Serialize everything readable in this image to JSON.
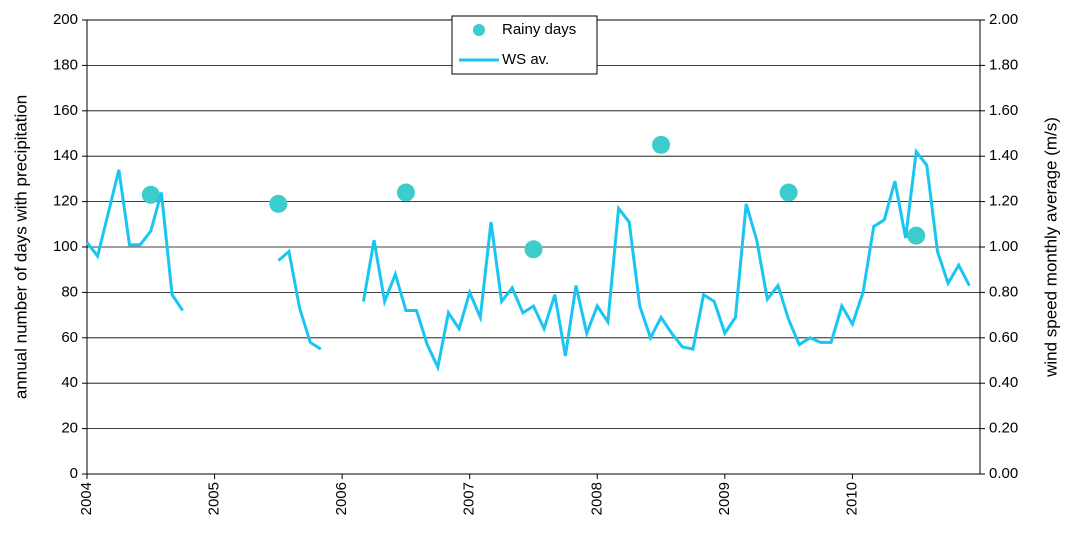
{
  "chart_data": {
    "type": "line-scatter",
    "y_label": "annual number of  days with precipitation",
    "y2_label": "wind speed monthly average (m/s)",
    "xlim": [
      2004,
      2011
    ],
    "xticks": [
      2004,
      2005,
      2006,
      2007,
      2008,
      2009,
      2010
    ],
    "ylim": [
      0,
      200
    ],
    "yticks": [
      0,
      20,
      40,
      60,
      80,
      100,
      120,
      140,
      160,
      180,
      200
    ],
    "y2lim": [
      0,
      2
    ],
    "y2ticks": [
      {
        "value": 0,
        "label": "0.00"
      },
      {
        "value": 0.2,
        "label": "0.20"
      },
      {
        "value": 0.4,
        "label": "0.40"
      },
      {
        "value": 0.6,
        "label": "0.60"
      },
      {
        "value": 0.8,
        "label": "0.80"
      },
      {
        "value": 1,
        "label": "1.00"
      },
      {
        "value": 1.2,
        "label": "1.20"
      },
      {
        "value": 1.4,
        "label": "1.40"
      },
      {
        "value": 1.6,
        "label": "1.60"
      },
      {
        "value": 1.8,
        "label": "1.80"
      },
      {
        "value": 2,
        "label": "2.00"
      }
    ],
    "grid": true,
    "legend": "top",
    "series": [
      {
        "name": "Rainy days",
        "kind": "scatter",
        "color": "#3ccccc",
        "axis": "y",
        "x": [
          2004.5,
          2005.5,
          2006.5,
          2007.5,
          2008.5,
          2009.5,
          2010.5
        ],
        "values": [
          123,
          119,
          124,
          99,
          145,
          124,
          105
        ]
      },
      {
        "name": "WS av.",
        "kind": "line",
        "color": "#19c6f2",
        "axis": "y2",
        "x": [
          2004,
          2004.083,
          2004.167,
          2004.25,
          2004.333,
          2004.417,
          2004.5,
          2004.583,
          2004.667,
          2004.75,
          2004.833,
          2004.917,
          2005,
          2005.083,
          2005.167,
          2005.25,
          2005.333,
          2005.417,
          2005.5,
          2005.583,
          2005.667,
          2005.75,
          2005.833,
          2005.917,
          2006,
          2006.083,
          2006.167,
          2006.25,
          2006.333,
          2006.417,
          2006.5,
          2006.583,
          2006.667,
          2006.75,
          2006.833,
          2006.917,
          2007,
          2007.083,
          2007.167,
          2007.25,
          2007.333,
          2007.417,
          2007.5,
          2007.583,
          2007.667,
          2007.75,
          2007.833,
          2007.917,
          2008,
          2008.083,
          2008.167,
          2008.25,
          2008.333,
          2008.417,
          2008.5,
          2008.583,
          2008.667,
          2008.75,
          2008.833,
          2008.917,
          2009,
          2009.083,
          2009.167,
          2009.25,
          2009.333,
          2009.417,
          2009.5,
          2009.583,
          2009.667,
          2009.75,
          2009.833,
          2009.917,
          2010,
          2010.083,
          2010.167,
          2010.25,
          2010.333,
          2010.417,
          2010.5,
          2010.583,
          2010.667,
          2010.75,
          2010.833,
          2010.917
        ],
        "values": [
          1.02,
          0.96,
          1.15,
          1.34,
          1.01,
          1.01,
          1.07,
          1.24,
          0.79,
          0.72,
          null,
          null,
          null,
          null,
          null,
          null,
          null,
          null,
          0.94,
          0.98,
          0.73,
          0.58,
          0.55,
          null,
          null,
          null,
          0.76,
          1.03,
          0.76,
          0.88,
          0.72,
          0.72,
          0.57,
          0.47,
          0.71,
          0.64,
          0.8,
          0.69,
          1.11,
          0.76,
          0.82,
          0.71,
          0.74,
          0.64,
          0.79,
          0.52,
          0.83,
          0.62,
          0.74,
          0.67,
          1.17,
          1.11,
          0.74,
          0.6,
          0.69,
          0.62,
          0.56,
          0.55,
          0.79,
          0.76,
          0.62,
          0.69,
          1.19,
          1.03,
          0.77,
          0.83,
          0.68,
          0.57,
          0.6,
          0.58,
          0.58,
          0.74,
          0.66,
          0.8,
          1.09,
          1.12,
          1.29,
          1.04,
          1.42,
          1.36,
          0.98,
          0.84,
          0.92,
          0.83
        ]
      }
    ]
  }
}
